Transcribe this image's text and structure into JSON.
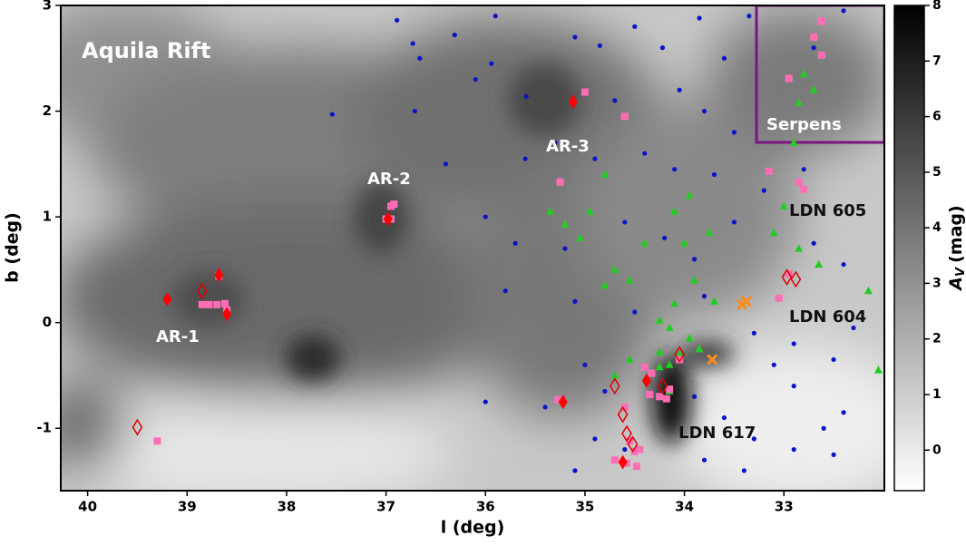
{
  "chart_data": {
    "type": "scatter",
    "annotations": [
      "Aquila Rift",
      "AR-1",
      "AR-2",
      "AR-3",
      "LDN 605",
      "LDN 604",
      "LDN 617",
      "Serpens"
    ],
    "xlabel": "l (deg)",
    "ylabel": "b (deg)",
    "xlim": [
      40.27,
      31.99
    ],
    "xticks": [
      40,
      39,
      38,
      37,
      36,
      35,
      34,
      33
    ],
    "ylim": [
      -1.59,
      3
    ],
    "yticks": [
      -1,
      0,
      1,
      2,
      3
    ],
    "colorbar": {
      "label_main": "A",
      "label_sub": "V",
      "label_unit": "(mag)",
      "lim": [
        -0.73,
        8
      ],
      "ticks": [
        0,
        1,
        2,
        3,
        4,
        5,
        6,
        7,
        8
      ]
    },
    "series": [
      {
        "marker": "circle",
        "color": "#0a14c8",
        "x": [
          36.89,
          35.9,
          36.31,
          36.73,
          36.66,
          37.54,
          36.71,
          35.94,
          35.59,
          35.1,
          34.85,
          34.5,
          34.22,
          33.85,
          33.6,
          33.35,
          32.7,
          32.4,
          34.7,
          34.05,
          33.8,
          33.5,
          35.6,
          35.3,
          34.9,
          34.4,
          34.1,
          33.7,
          33.2,
          32.8,
          36.0,
          35.7,
          35.2,
          34.6,
          34.2,
          33.9,
          33.5,
          32.7,
          32.4,
          35.8,
          35.1,
          34.5,
          33.8,
          33.3,
          32.9,
          32.5,
          32.3,
          35.0,
          34.8,
          35.4,
          36.0,
          34.9,
          35.1,
          34.6,
          33.9,
          33.6,
          33.3,
          33.8,
          33.4,
          32.9,
          32.6,
          32.4,
          32.9,
          33.1,
          32.5,
          36.4,
          36.1
        ],
        "values": [
          2.86,
          2.9,
          2.72,
          2.64,
          2.5,
          1.97,
          2.0,
          2.45,
          2.14,
          2.7,
          2.62,
          2.8,
          2.6,
          2.88,
          2.5,
          2.9,
          2.6,
          2.95,
          2.1,
          2.2,
          2.0,
          1.8,
          1.55,
          1.7,
          1.55,
          1.6,
          1.45,
          1.4,
          1.25,
          1.45,
          1.0,
          0.75,
          0.7,
          0.95,
          0.8,
          0.6,
          0.95,
          0.75,
          0.55,
          0.3,
          0.2,
          0.1,
          0.25,
          -0.1,
          -0.2,
          -0.35,
          -0.05,
          -0.4,
          -0.65,
          -0.8,
          -0.75,
          -1.1,
          -1.4,
          -1.2,
          -0.7,
          -0.9,
          -1.1,
          -1.3,
          -1.4,
          -1.2,
          -1.0,
          -0.85,
          -0.6,
          -0.4,
          -1.25,
          1.5,
          2.3
        ]
      },
      {
        "marker": "triangle",
        "color": "#22cc22",
        "x": [
          34.8,
          35.35,
          35.2,
          34.95,
          35.05,
          34.7,
          34.8,
          34.55,
          34.4,
          34.0,
          33.75,
          33.9,
          34.1,
          33.7,
          34.25,
          34.15,
          33.95,
          34.25,
          34.05,
          34.15,
          34.25,
          34.55,
          34.7,
          33.85,
          34.15,
          33.95,
          34.1,
          33.1,
          32.85,
          32.65,
          33.0,
          32.9,
          32.85,
          32.7,
          32.8,
          32.05,
          32.15
        ],
        "values": [
          1.4,
          1.05,
          0.93,
          1.05,
          0.8,
          0.5,
          0.35,
          0.4,
          0.75,
          0.75,
          0.85,
          0.4,
          0.18,
          0.2,
          0.02,
          -0.05,
          -0.15,
          -0.28,
          -0.3,
          -0.4,
          -0.42,
          -0.35,
          -0.5,
          -0.25,
          -0.65,
          1.2,
          1.05,
          0.85,
          0.7,
          0.55,
          1.1,
          1.7,
          2.08,
          2.2,
          2.35,
          -0.45,
          0.3
        ]
      },
      {
        "marker": "square",
        "color": "#ff6eb4",
        "x": [
          38.85,
          38.78,
          38.7,
          38.62,
          38.68,
          38.6,
          39.3,
          36.95,
          37.0,
          36.92,
          36.95,
          35.25,
          35.0,
          34.6,
          35.27,
          34.6,
          34.7,
          34.58,
          34.48,
          34.5,
          34.55,
          34.45,
          34.4,
          34.33,
          34.25,
          34.18,
          34.35,
          34.05,
          34.15,
          33.15,
          33.05,
          32.85,
          32.8,
          32.95,
          32.7,
          32.95,
          32.62,
          32.62
        ],
        "values": [
          0.17,
          0.17,
          0.17,
          0.18,
          0.44,
          0.12,
          -1.12,
          0.98,
          0.98,
          1.12,
          1.1,
          1.33,
          2.18,
          1.95,
          -0.73,
          -0.8,
          -1.3,
          -1.33,
          -1.36,
          -1.22,
          -1.12,
          -1.2,
          -0.42,
          -0.48,
          -0.7,
          -0.72,
          -0.68,
          -0.35,
          -0.63,
          1.43,
          0.23,
          1.33,
          1.26,
          0.46,
          2.7,
          2.31,
          2.53,
          2.85
        ]
      },
      {
        "marker": "diamond",
        "color": "#ff0000",
        "x": [
          39.2,
          38.6,
          36.98,
          35.12,
          35.22,
          34.38,
          34.62,
          38.68
        ],
        "values": [
          0.22,
          0.08,
          0.98,
          2.09,
          -0.75,
          -0.55,
          -1.32,
          0.45
        ]
      },
      {
        "marker": "diamond-open",
        "color": "#e00000",
        "x": [
          39.5,
          38.85,
          34.7,
          34.62,
          34.58,
          34.52,
          34.22,
          34.05,
          32.97,
          32.88
        ],
        "values": [
          -0.99,
          0.3,
          -0.6,
          -0.87,
          -1.05,
          -1.15,
          -0.6,
          -0.3,
          0.43,
          0.41
        ]
      },
      {
        "marker": "x",
        "color": "#ff8c1a",
        "x": [
          33.42,
          33.38,
          33.72
        ],
        "values": [
          0.17,
          0.2,
          -0.35
        ]
      }
    ]
  }
}
